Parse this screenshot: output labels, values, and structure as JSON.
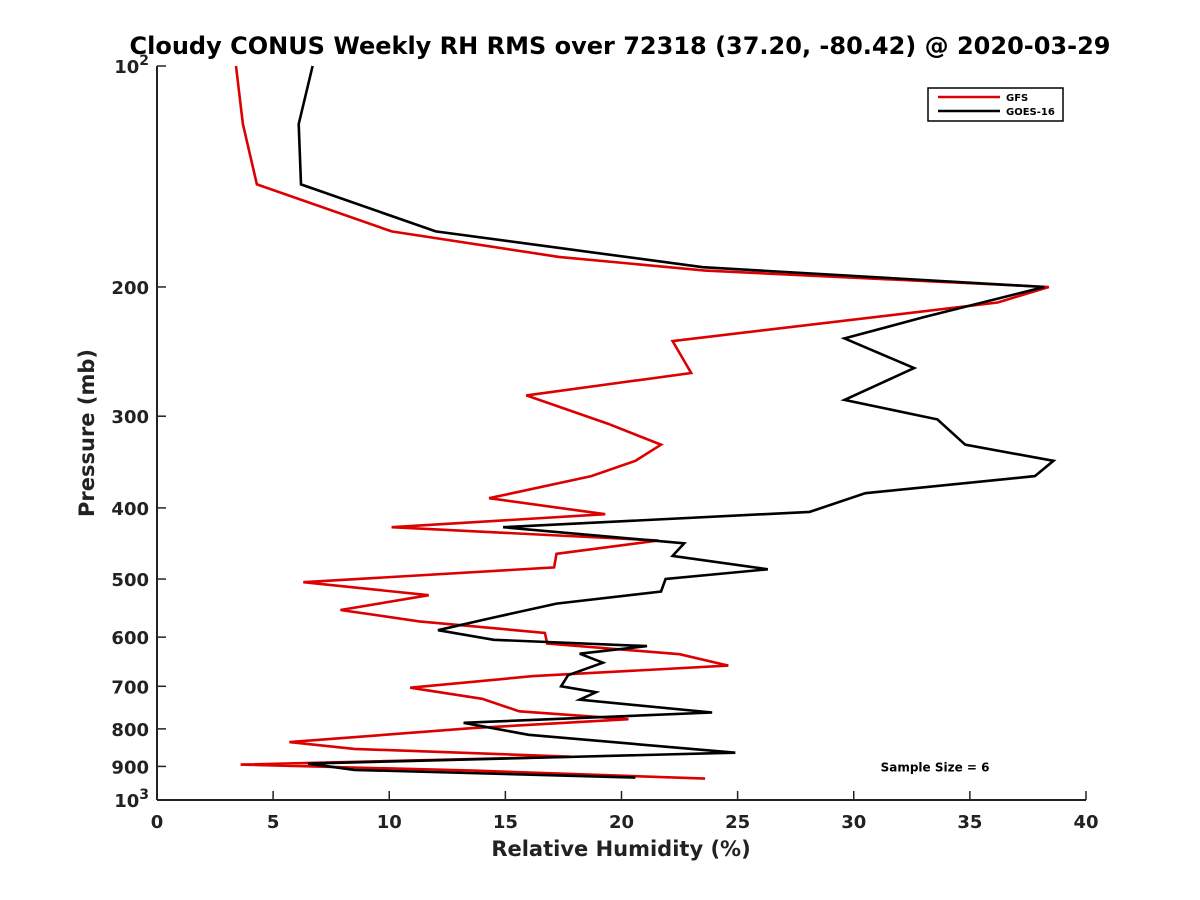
{
  "chart_data": {
    "type": "line",
    "title": "Cloudy CONUS Weekly RH RMS over 72318 (37.20, -80.42) @ 2020-03-29",
    "xlabel": "Relative Humidity (%)",
    "ylabel": "Pressure (mb)",
    "xlim": [
      0,
      40
    ],
    "ylim": [
      100,
      1000
    ],
    "yscale": "log",
    "y_reversed": true,
    "grid": false,
    "legend_position": "top-right",
    "x_ticks": [
      0,
      5,
      10,
      15,
      20,
      25,
      30,
      35,
      40
    ],
    "x_tick_labels": [
      "0",
      "5",
      "10",
      "15",
      "20",
      "25",
      "30",
      "35",
      "40"
    ],
    "y_ticks": [
      100,
      200,
      300,
      400,
      500,
      600,
      700,
      800,
      900,
      1000
    ],
    "y_tick_labels": [
      {
        "base": "10",
        "exp": "2"
      },
      {
        "text": "200"
      },
      {
        "text": "300"
      },
      {
        "text": "400"
      },
      {
        "text": "500"
      },
      {
        "text": "600"
      },
      {
        "text": "700"
      },
      {
        "text": "800"
      },
      {
        "text": "900"
      },
      {
        "base": "10",
        "exp": "3"
      }
    ],
    "series": [
      {
        "name": "GFS",
        "color": "#dd0000",
        "x": [
          3.4,
          3.7,
          4.3,
          10.1,
          17.3,
          23.6,
          38.4,
          36.2,
          22.2,
          23.0,
          15.9,
          19.4,
          21.7,
          20.6,
          18.7,
          14.3,
          19.3,
          10.1,
          21.6,
          17.2,
          17.1,
          6.3,
          11.7,
          7.9,
          11.3,
          16.7,
          16.8,
          22.5,
          24.6,
          16.2,
          10.9,
          14.0,
          15.6,
          20.3,
          13.6,
          5.7,
          8.5,
          17.8,
          3.6,
          13.6,
          23.6
        ],
        "y": [
          100,
          120,
          145,
          168,
          182,
          190,
          200,
          210,
          237,
          262,
          281,
          307,
          328,
          345,
          362,
          388,
          408,
          425,
          443,
          462,
          482,
          505,
          526,
          551,
          571,
          592,
          612,
          633,
          656,
          678,
          703,
          728,
          757,
          776,
          798,
          834,
          852,
          873,
          895,
          912,
          935
        ]
      },
      {
        "name": "GOES-16",
        "color": "#000000",
        "x": [
          6.7,
          6.1,
          6.2,
          12.0,
          23.5,
          38.2,
          33.0,
          29.6,
          32.6,
          29.6,
          33.6,
          34.8,
          38.6,
          37.8,
          30.5,
          28.1,
          14.9,
          22.7,
          22.2,
          26.3,
          21.9,
          21.7,
          17.2,
          14.4,
          12.1,
          14.5,
          21.1,
          18.2,
          19.2,
          17.7,
          17.4,
          18.9,
          18.2,
          23.9,
          13.2,
          16.0,
          24.9,
          6.5,
          8.5,
          20.6
        ],
        "y": [
          100,
          120,
          145,
          168,
          188,
          200,
          220,
          235,
          258,
          285,
          303,
          328,
          345,
          362,
          382,
          405,
          425,
          447,
          465,
          485,
          500,
          520,
          540,
          565,
          587,
          605,
          617,
          632,
          650,
          676,
          700,
          713,
          730,
          760,
          785,
          815,
          862,
          892,
          910,
          932
        ]
      }
    ],
    "annotations": [
      {
        "text": "Sample Size = 6",
        "x": 33.5,
        "y": 900
      }
    ]
  }
}
